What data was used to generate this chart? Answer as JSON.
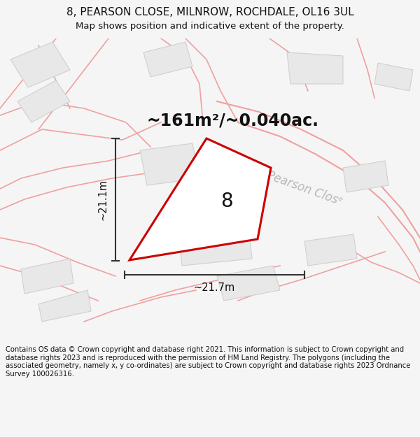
{
  "title": "8, PEARSON CLOSE, MILNROW, ROCHDALE, OL16 3UL",
  "subtitle": "Map shows position and indicative extent of the property.",
  "area_label": "~161m²/~0.040ac.",
  "plot_number": "8",
  "dim_width": "~21.7m",
  "dim_height": "~21.1m",
  "street_label": "Pearson Closᵉ",
  "footer": "Contains OS data © Crown copyright and database right 2021. This information is subject to Crown copyright and database rights 2023 and is reproduced with the permission of HM Land Registry. The polygons (including the associated geometry, namely x, y co-ordinates) are subject to Crown copyright and database rights 2023 Ordnance Survey 100026316.",
  "bg_color": "#f5f5f5",
  "map_bg": "#f5f5f5",
  "plot_color": "#cc0000",
  "building_fill": "#e8e8e8",
  "building_edge": "#d0d0d0",
  "road_line": "#f0a0a0",
  "dim_line_color": "#333333",
  "street_label_color": "#b8b8b8",
  "title_fontsize": 11,
  "subtitle_fontsize": 9.5,
  "area_fontsize": 17,
  "plot_num_fontsize": 20,
  "dim_fontsize": 10.5,
  "street_fontsize": 12,
  "footer_fontsize": 7.2
}
